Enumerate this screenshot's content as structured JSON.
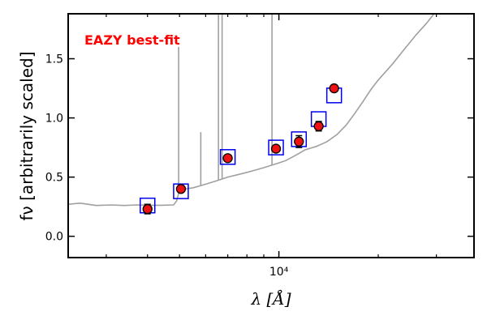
{
  "chart_data": {
    "type": "scatter",
    "title": "",
    "xlabel": "λ [Å]",
    "ylabel": "fν [arbitrarily scaled]",
    "xscale": "log",
    "xlim": [
      2300,
      39000
    ],
    "ylim": [
      -0.18,
      1.88
    ],
    "xticks": [
      {
        "value": 10000,
        "label": "10⁴"
      }
    ],
    "yticks": [
      0.0,
      0.5,
      1.0,
      1.5
    ],
    "ytick_labels": [
      "0.0",
      "0.5",
      "1.0",
      "1.5"
    ],
    "grid": false,
    "annotation": {
      "text": "EAZY best-fit",
      "color": "#ff0000"
    },
    "template_color": "#a0a0a0",
    "model_marker_color": "#0000ee",
    "observed_marker_color": "#ee1111",
    "template": {
      "continuum": [
        [
          2300,
          0.27
        ],
        [
          2500,
          0.28
        ],
        [
          2800,
          0.26
        ],
        [
          3100,
          0.265
        ],
        [
          3400,
          0.26
        ],
        [
          3700,
          0.265
        ],
        [
          4000,
          0.262
        ],
        [
          4400,
          0.262
        ],
        [
          4800,
          0.265
        ],
        [
          4900,
          0.3
        ],
        [
          5000,
          0.39
        ],
        [
          5200,
          0.4
        ],
        [
          5500,
          0.41
        ],
        [
          6000,
          0.44
        ],
        [
          6500,
          0.47
        ],
        [
          7000,
          0.5
        ],
        [
          7500,
          0.52
        ],
        [
          8000,
          0.54
        ],
        [
          8500,
          0.56
        ],
        [
          9000,
          0.58
        ],
        [
          9500,
          0.6
        ],
        [
          10000,
          0.62
        ],
        [
          10500,
          0.64
        ],
        [
          11000,
          0.67
        ],
        [
          11500,
          0.7
        ],
        [
          12000,
          0.73
        ],
        [
          13000,
          0.76
        ],
        [
          14000,
          0.8
        ],
        [
          15000,
          0.86
        ],
        [
          16000,
          0.94
        ],
        [
          17000,
          1.04
        ],
        [
          18000,
          1.14
        ],
        [
          19000,
          1.24
        ],
        [
          20000,
          1.32
        ],
        [
          22000,
          1.45
        ],
        [
          24000,
          1.58
        ],
        [
          26000,
          1.7
        ],
        [
          28000,
          1.8
        ],
        [
          29500,
          1.88
        ]
      ],
      "emission_lines": [
        {
          "wavelength": 4970,
          "top": 1.6
        },
        {
          "wavelength": 5800,
          "top": 0.88
        },
        {
          "wavelength": 6560,
          "top": 1.88
        },
        {
          "wavelength": 6730,
          "top": 1.88
        },
        {
          "wavelength": 9530,
          "top": 1.88
        }
      ]
    },
    "series": [
      {
        "marker": "square",
        "x": [
          4000,
          5050,
          7000,
          9800,
          11500,
          13200,
          14700
        ],
        "y": [
          0.26,
          0.38,
          0.67,
          0.75,
          0.82,
          0.99,
          1.19
        ]
      },
      {
        "marker": "circle",
        "x": [
          4000,
          5050,
          7000,
          9800,
          11500,
          13200,
          14700
        ],
        "y": [
          0.23,
          0.4,
          0.66,
          0.74,
          0.8,
          0.93,
          1.25
        ],
        "yerr": [
          0.04,
          0.02,
          0.02,
          0.02,
          0.05,
          0.04,
          0.02
        ]
      }
    ]
  }
}
